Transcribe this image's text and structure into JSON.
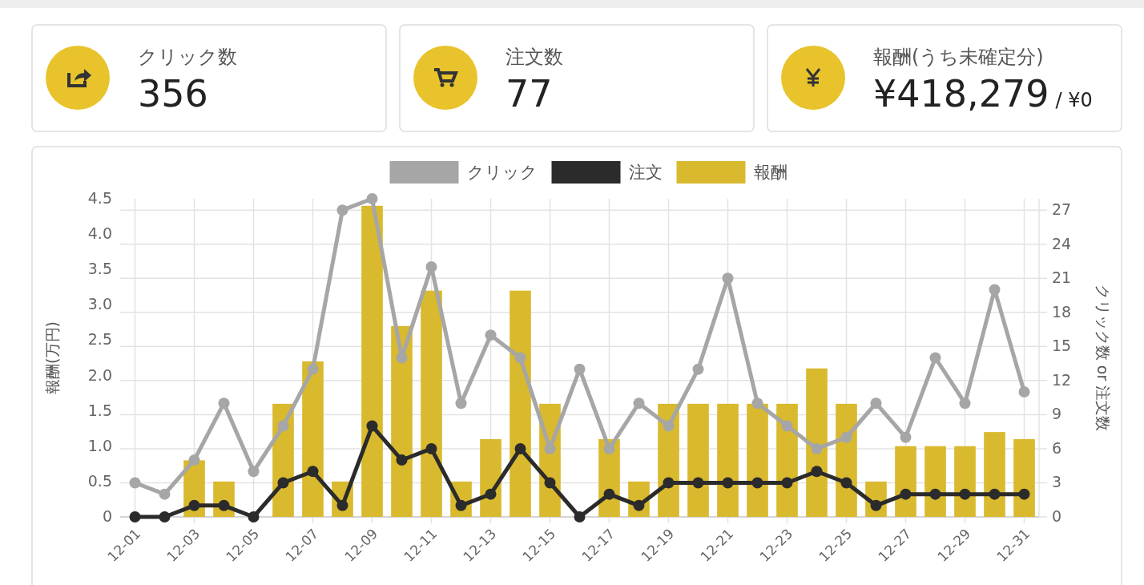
{
  "chart_data": [
    {
      "type": "other",
      "title": "クリック数",
      "annotations": [
        "356"
      ]
    },
    {
      "type": "other",
      "title": "注文数",
      "annotations": [
        "77"
      ]
    },
    {
      "type": "other",
      "title": "報酬(うち未確定分)",
      "annotations": [
        "¥418,279",
        "/ ¥0"
      ]
    },
    {
      "type": "bar",
      "categories": [
        "12-01",
        null,
        "12-03",
        null,
        "12-05",
        null,
        "12-07",
        null,
        "12-09",
        null,
        "12-11",
        null,
        "12-13",
        null,
        "12-15",
        null,
        "12-17",
        null,
        "12-19",
        null,
        "12-21",
        null,
        "12-23",
        null,
        "12-25",
        null,
        "12-27",
        null,
        "12-29",
        null,
        "12-31"
      ],
      "series": [
        {
          "name": "クリック",
          "type": "line",
          "axis": "y2",
          "color": "#a6a6a6",
          "marker": "circle",
          "values": [
            3,
            2,
            5,
            10,
            4,
            8,
            13,
            27,
            28,
            14,
            22,
            10,
            16,
            14,
            6,
            13,
            6,
            10,
            8,
            13,
            21,
            10,
            8,
            6,
            7,
            10,
            7,
            14,
            10,
            20,
            11
          ]
        },
        {
          "name": "注文",
          "type": "line",
          "axis": "y2",
          "color": "#2b2b2b",
          "marker": "circle",
          "values": [
            0,
            0,
            1,
            1,
            0,
            3,
            4,
            1,
            8,
            5,
            6,
            1,
            2,
            6,
            3,
            0,
            2,
            1,
            3,
            3,
            3,
            3,
            3,
            4,
            3,
            1,
            2,
            2,
            2,
            2,
            2
          ]
        },
        {
          "name": "報酬",
          "type": "bar",
          "axis": "y",
          "color": "#d9b92e",
          "values": [
            0,
            0,
            0.8,
            0.5,
            0,
            1.6,
            2.2,
            0.5,
            4.4,
            2.7,
            3.2,
            0.5,
            1.1,
            3.2,
            1.6,
            0,
            1.1,
            0.5,
            1.6,
            1.6,
            1.6,
            1.6,
            1.6,
            2.1,
            1.6,
            0.5,
            1.0,
            1.0,
            1.0,
            1.2,
            1.1
          ]
        }
      ],
      "ylabel": "報酬(万円)",
      "y2label": "クリック数 or 注文数",
      "ylim": [
        0,
        4.5
      ],
      "yticks": [
        0,
        0.5,
        {
          "value": 1,
          "label": "1.0"
        },
        1.5,
        {
          "value": 2,
          "label": "2.0"
        },
        2.5,
        {
          "value": 3,
          "label": "3.0"
        },
        3.5,
        {
          "value": 4,
          "label": "4.0"
        },
        4.5
      ],
      "y2lim": [
        0,
        28
      ],
      "y2ticks": [
        0,
        3,
        6,
        9,
        12,
        15,
        18,
        21,
        24,
        27
      ],
      "grid": true,
      "legend": "top"
    }
  ]
}
